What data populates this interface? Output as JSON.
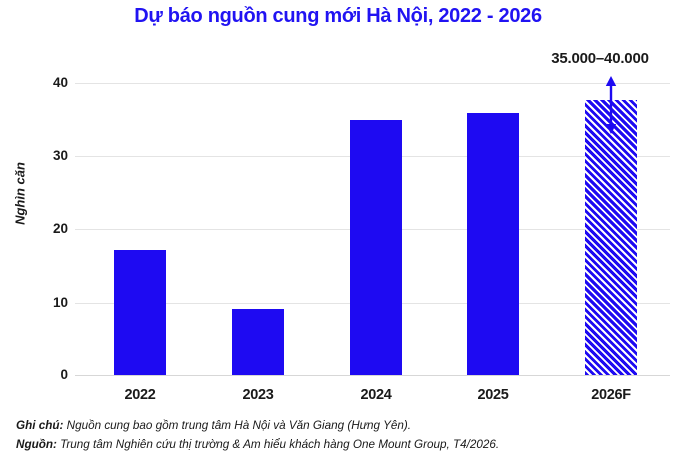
{
  "title": "Dự báo nguồn cung mới Hà Nội, 2022 - 2026",
  "colors": {
    "accent_blue": "#2113f2",
    "bar_blue": "#1e0af2",
    "grid_gray": "#e4e4e4",
    "text_dark": "#1a1a1a"
  },
  "y_axis": {
    "label": "Nghìn căn",
    "ticks": [
      "40",
      "30",
      "20",
      "10",
      "0"
    ]
  },
  "annotation": {
    "range_label": "35.000–40.000"
  },
  "chart_data": {
    "type": "bar",
    "title": "Dự báo nguồn cung mới Hà Nội, 2022 - 2026",
    "categories": [
      "2022",
      "2023",
      "2024",
      "2025",
      "2026F"
    ],
    "values": [
      17,
      9,
      34.8,
      35.8,
      37.5
    ],
    "forecast_index": 4,
    "forecast_range": [
      35,
      40
    ],
    "forecast_range_label": "35.000–40.000",
    "xlabel": "",
    "ylabel": "Nghìn căn",
    "ylim": [
      0,
      40
    ],
    "ytick_step": 10,
    "grid": true,
    "legend": false,
    "bar_color": "#1e0af2",
    "forecast_style": "diagonal-hatch"
  },
  "footer": {
    "note_label": "Ghi chú:",
    "note_text": " Nguồn cung bao gồm trung tâm Hà Nội và Văn Giang (Hưng Yên).",
    "source_label": "Nguồn:",
    "source_text": " Trung tâm Nghiên cứu thị trường & Am hiểu khách hàng One Mount Group, T4/2026."
  }
}
